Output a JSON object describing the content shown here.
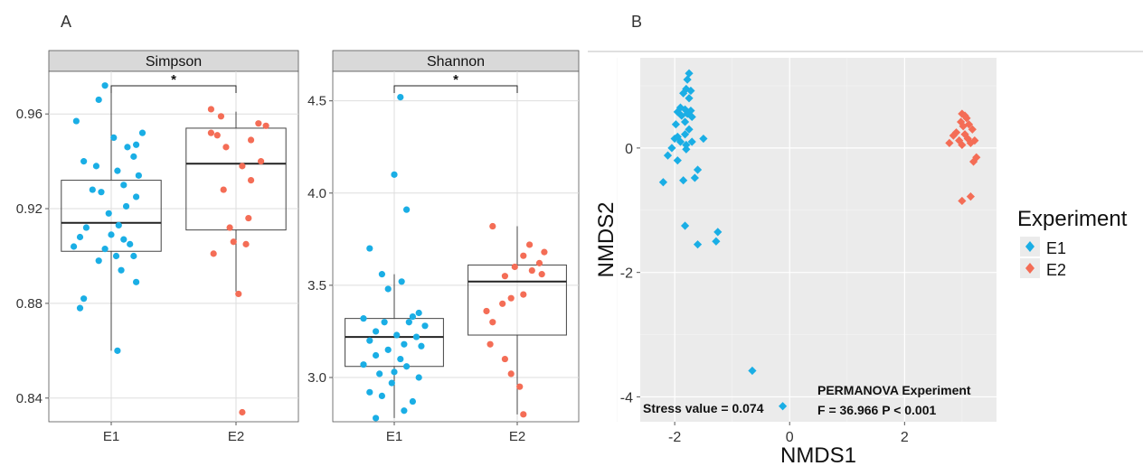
{
  "panels": {
    "a_label": "A",
    "b_label": "B"
  },
  "colors": {
    "E1": "#1aaee5",
    "E2": "#f46d56",
    "strip": "#d9d9d9",
    "panel_bg": "#ebebeb",
    "grid": "#ffffff"
  },
  "chart_data": [
    {
      "type": "box",
      "title": "Simpson",
      "categories": [
        "E1",
        "E2"
      ],
      "ylim": [
        0.83,
        0.978
      ],
      "yticks": [
        0.84,
        0.88,
        0.92,
        0.96
      ],
      "ytick_labels": [
        "0.84",
        "0.88",
        "0.92",
        "0.96"
      ],
      "significance": "*",
      "boxes": [
        {
          "group": "E1",
          "q1": 0.902,
          "median": 0.914,
          "q3": 0.932,
          "whisker_low": 0.86,
          "whisker_high": 0.972
        },
        {
          "group": "E2",
          "q1": 0.911,
          "median": 0.939,
          "q3": 0.954,
          "whisker_low": 0.885,
          "whisker_high": 0.961
        }
      ],
      "series": [
        {
          "name": "E1",
          "points": [
            [
              -0.05,
              0.972
            ],
            [
              -0.1,
              0.966
            ],
            [
              -0.28,
              0.957
            ],
            [
              0.25,
              0.952
            ],
            [
              0.02,
              0.95
            ],
            [
              0.2,
              0.947
            ],
            [
              0.13,
              0.946
            ],
            [
              -0.22,
              0.94
            ],
            [
              0.18,
              0.942
            ],
            [
              -0.12,
              0.938
            ],
            [
              0.05,
              0.936
            ],
            [
              0.22,
              0.934
            ],
            [
              0.1,
              0.93
            ],
            [
              -0.15,
              0.928
            ],
            [
              -0.08,
              0.927
            ],
            [
              0.2,
              0.925
            ],
            [
              0.12,
              0.921
            ],
            [
              -0.02,
              0.918
            ],
            [
              0.06,
              0.913
            ],
            [
              -0.2,
              0.912
            ],
            [
              -0.25,
              0.908
            ],
            [
              0.0,
              0.909
            ],
            [
              0.1,
              0.907
            ],
            [
              0.15,
              0.905
            ],
            [
              -0.3,
              0.904
            ],
            [
              -0.05,
              0.903
            ],
            [
              0.04,
              0.9
            ],
            [
              0.18,
              0.9
            ],
            [
              -0.1,
              0.898
            ],
            [
              0.08,
              0.894
            ],
            [
              0.2,
              0.889
            ],
            [
              -0.22,
              0.882
            ],
            [
              -0.25,
              0.878
            ],
            [
              0.05,
              0.86
            ]
          ]
        },
        {
          "name": "E2",
          "points": [
            [
              -0.2,
              0.962
            ],
            [
              -0.12,
              0.959
            ],
            [
              0.18,
              0.956
            ],
            [
              0.24,
              0.955
            ],
            [
              -0.2,
              0.952
            ],
            [
              -0.15,
              0.951
            ],
            [
              0.12,
              0.949
            ],
            [
              -0.08,
              0.946
            ],
            [
              0.2,
              0.94
            ],
            [
              0.05,
              0.938
            ],
            [
              0.12,
              0.932
            ],
            [
              -0.1,
              0.928
            ],
            [
              0.1,
              0.916
            ],
            [
              -0.05,
              0.912
            ],
            [
              -0.02,
              0.906
            ],
            [
              0.08,
              0.905
            ],
            [
              -0.18,
              0.901
            ],
            [
              0.02,
              0.884
            ],
            [
              0.05,
              0.834
            ]
          ]
        }
      ]
    },
    {
      "type": "box",
      "title": "Shannon",
      "categories": [
        "E1",
        "E2"
      ],
      "ylim": [
        2.76,
        4.66
      ],
      "yticks": [
        3.0,
        3.5,
        4.0,
        4.5
      ],
      "ytick_labels": [
        "3.0",
        "3.5",
        "4.0",
        "4.5"
      ],
      "significance": "*",
      "boxes": [
        {
          "group": "E1",
          "q1": 3.06,
          "median": 3.22,
          "q3": 3.32,
          "whisker_low": 2.78,
          "whisker_high": 3.56
        },
        {
          "group": "E2",
          "q1": 3.23,
          "median": 3.52,
          "q3": 3.61,
          "whisker_low": 2.8,
          "whisker_high": 3.82
        }
      ],
      "series": [
        {
          "name": "E1",
          "points": [
            [
              0.05,
              4.52
            ],
            [
              0.0,
              4.1
            ],
            [
              0.1,
              3.91
            ],
            [
              -0.2,
              3.7
            ],
            [
              -0.1,
              3.56
            ],
            [
              0.06,
              3.52
            ],
            [
              -0.05,
              3.48
            ],
            [
              0.2,
              3.35
            ],
            [
              0.15,
              3.33
            ],
            [
              -0.25,
              3.32
            ],
            [
              -0.08,
              3.3
            ],
            [
              0.12,
              3.3
            ],
            [
              0.25,
              3.28
            ],
            [
              -0.15,
              3.25
            ],
            [
              0.02,
              3.23
            ],
            [
              0.18,
              3.22
            ],
            [
              -0.2,
              3.2
            ],
            [
              0.08,
              3.18
            ],
            [
              0.22,
              3.17
            ],
            [
              -0.05,
              3.15
            ],
            [
              -0.15,
              3.12
            ],
            [
              0.05,
              3.1
            ],
            [
              -0.25,
              3.07
            ],
            [
              0.1,
              3.06
            ],
            [
              0.0,
              3.03
            ],
            [
              -0.12,
              3.02
            ],
            [
              0.2,
              3.0
            ],
            [
              -0.02,
              2.97
            ],
            [
              -0.2,
              2.92
            ],
            [
              -0.1,
              2.9
            ],
            [
              0.15,
              2.87
            ],
            [
              0.08,
              2.82
            ],
            [
              -0.15,
              2.78
            ]
          ]
        },
        {
          "name": "E2",
          "points": [
            [
              -0.2,
              3.82
            ],
            [
              0.1,
              3.72
            ],
            [
              0.22,
              3.68
            ],
            [
              0.05,
              3.66
            ],
            [
              0.18,
              3.62
            ],
            [
              -0.02,
              3.6
            ],
            [
              0.12,
              3.58
            ],
            [
              0.2,
              3.56
            ],
            [
              -0.1,
              3.55
            ],
            [
              0.05,
              3.45
            ],
            [
              -0.05,
              3.43
            ],
            [
              -0.12,
              3.4
            ],
            [
              -0.25,
              3.36
            ],
            [
              -0.2,
              3.3
            ],
            [
              -0.22,
              3.18
            ],
            [
              -0.1,
              3.1
            ],
            [
              -0.05,
              3.02
            ],
            [
              0.02,
              2.95
            ],
            [
              0.05,
              2.8
            ]
          ]
        }
      ]
    },
    {
      "type": "scatter",
      "xlabel": "NMDS1",
      "ylabel": "NMDS2",
      "xlim": [
        -2.6,
        3.6
      ],
      "ylim": [
        -4.4,
        1.45
      ],
      "xticks": [
        -2,
        0,
        2
      ],
      "xtick_labels": [
        "-2",
        "0",
        "2"
      ],
      "yticks": [
        -4,
        -2,
        0
      ],
      "ytick_labels": [
        "-4",
        "-2",
        "0"
      ],
      "legend": {
        "title": "Experiment",
        "entries": [
          "E1",
          "E2"
        ],
        "position": "right"
      },
      "annotations": {
        "stress": "Stress value = 0.074",
        "permanova_line1": "PERMANOVA Experiment",
        "permanova_line2": "F = 36.966 P < 0.001"
      },
      "series": [
        {
          "name": "E1",
          "points": [
            [
              -1.75,
              1.2
            ],
            [
              -1.78,
              1.1
            ],
            [
              -1.8,
              0.95
            ],
            [
              -1.72,
              0.92
            ],
            [
              -1.85,
              0.88
            ],
            [
              -1.75,
              0.8
            ],
            [
              -1.9,
              0.65
            ],
            [
              -1.82,
              0.62
            ],
            [
              -1.72,
              0.6
            ],
            [
              -1.95,
              0.58
            ],
            [
              -1.78,
              0.55
            ],
            [
              -1.88,
              0.52
            ],
            [
              -1.7,
              0.5
            ],
            [
              -1.82,
              0.42
            ],
            [
              -1.98,
              0.38
            ],
            [
              -1.75,
              0.3
            ],
            [
              -1.82,
              0.22
            ],
            [
              -1.95,
              0.18
            ],
            [
              -2.0,
              0.15
            ],
            [
              -1.9,
              0.1
            ],
            [
              -1.7,
              0.1
            ],
            [
              -1.8,
              0.05
            ],
            [
              -1.5,
              0.15
            ],
            [
              -2.05,
              0.0
            ],
            [
              -1.8,
              -0.02
            ],
            [
              -2.12,
              -0.12
            ],
            [
              -1.95,
              -0.2
            ],
            [
              -1.6,
              -0.35
            ],
            [
              -1.85,
              -0.52
            ],
            [
              -2.2,
              -0.55
            ],
            [
              -1.65,
              -0.48
            ],
            [
              -1.82,
              -1.25
            ],
            [
              -1.25,
              -1.35
            ],
            [
              -1.28,
              -1.5
            ],
            [
              -1.6,
              -1.55
            ],
            [
              -0.65,
              -3.58
            ],
            [
              -0.12,
              -4.15
            ]
          ]
        },
        {
          "name": "E2",
          "points": [
            [
              3.0,
              0.55
            ],
            [
              3.05,
              0.52
            ],
            [
              3.08,
              0.48
            ],
            [
              2.98,
              0.42
            ],
            [
              3.12,
              0.38
            ],
            [
              3.02,
              0.35
            ],
            [
              3.18,
              0.3
            ],
            [
              2.9,
              0.25
            ],
            [
              3.05,
              0.22
            ],
            [
              2.85,
              0.2
            ],
            [
              3.1,
              0.15
            ],
            [
              2.95,
              0.12
            ],
            [
              3.22,
              0.12
            ],
            [
              3.15,
              0.08
            ],
            [
              2.78,
              0.08
            ],
            [
              3.0,
              0.05
            ],
            [
              3.25,
              -0.15
            ],
            [
              3.2,
              -0.22
            ],
            [
              3.15,
              -0.78
            ],
            [
              3.0,
              -0.85
            ]
          ]
        }
      ]
    }
  ]
}
